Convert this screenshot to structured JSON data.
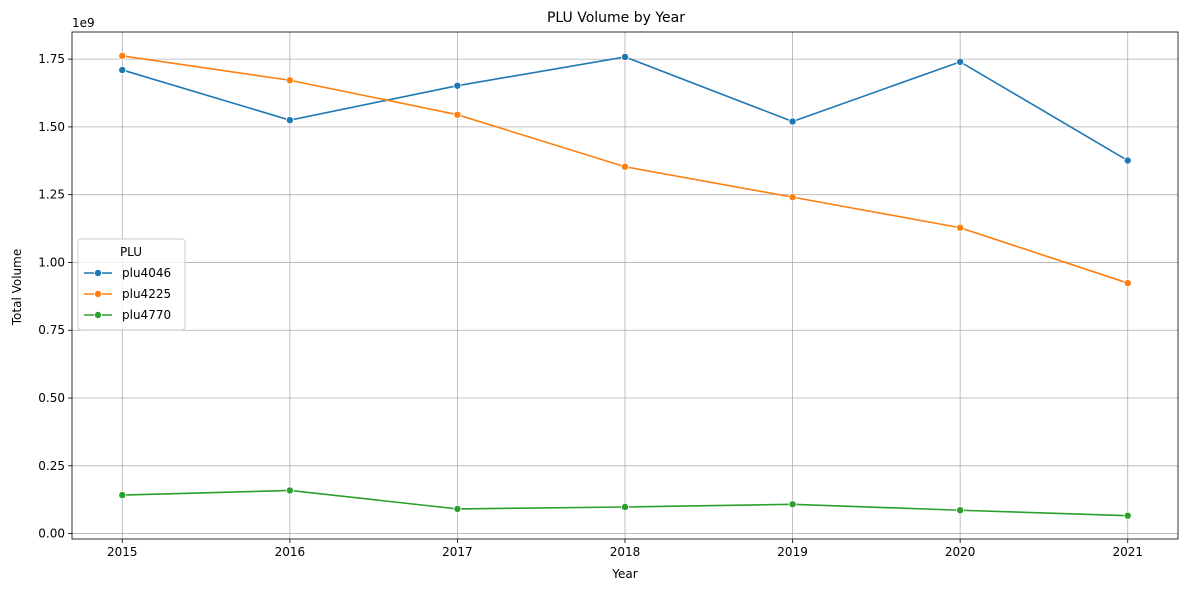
{
  "chart_data": {
    "type": "line",
    "title": "PLU Volume by Year",
    "xlabel": "Year",
    "ylabel": "Total Volume",
    "y_scale_label": "1e9",
    "x": [
      2015,
      2016,
      2017,
      2018,
      2019,
      2020,
      2021
    ],
    "x_ticks": [
      "2015",
      "2016",
      "2017",
      "2018",
      "2019",
      "2020",
      "2021"
    ],
    "y_ticks": [
      "0.00",
      "0.25",
      "0.50",
      "0.75",
      "1.00",
      "1.25",
      "1.50",
      "1.75"
    ],
    "y_tick_values": [
      0.0,
      0.25,
      0.5,
      0.75,
      1.0,
      1.25,
      1.5,
      1.75
    ],
    "xlim": [
      2014.7,
      2021.3
    ],
    "ylim": [
      -0.02,
      1.85
    ],
    "grid": true,
    "legend": {
      "title": "PLU",
      "position": "center-left"
    },
    "series": [
      {
        "name": "plu4046",
        "color": "#1f77b4",
        "values": [
          1.71,
          1.525,
          1.652,
          1.758,
          1.52,
          1.74,
          1.376
        ]
      },
      {
        "name": "plu4225",
        "color": "#ff7f0e",
        "values": [
          1.762,
          1.672,
          1.545,
          1.353,
          1.241,
          1.128,
          0.924
        ]
      },
      {
        "name": "plu4770",
        "color": "#2ca02c",
        "values": [
          0.142,
          0.159,
          0.091,
          0.098,
          0.108,
          0.086,
          0.066
        ]
      }
    ]
  }
}
